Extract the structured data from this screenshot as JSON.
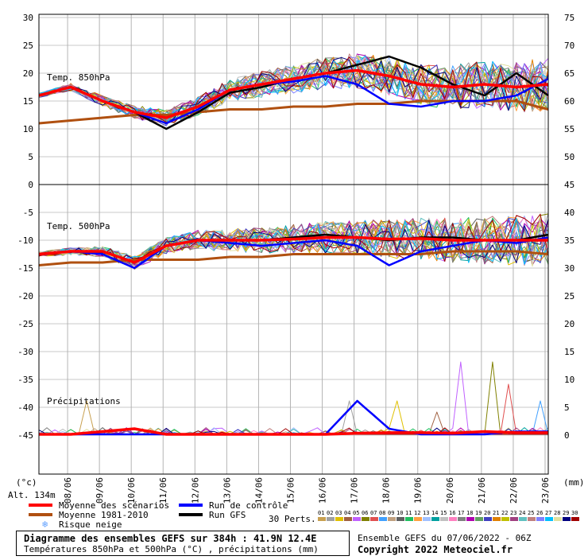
{
  "panels": {
    "top_label": "Temp. 850hPa",
    "mid_label": "Temp. 500hPa",
    "precip_label": "Précipitations"
  },
  "axes": {
    "left_unit": "(°c)",
    "right_unit": "(mm)",
    "altitude": "Alt. 134m",
    "left_top_ticks": [
      "30",
      "25",
      "20",
      "15",
      "10",
      "5",
      "0"
    ],
    "right_top_ticks": [
      "75",
      "70",
      "65",
      "60",
      "55",
      "50",
      "45"
    ],
    "left_bottom_ticks": [
      "-5",
      "-10",
      "-15",
      "-20",
      "-25",
      "-30",
      "-35",
      "-40",
      "-45"
    ],
    "right_bottom_ticks": [
      "40",
      "35",
      "30",
      "25",
      "20",
      "15",
      "10",
      "5",
      "0"
    ],
    "dates": [
      "08/06",
      "09/06",
      "10/06",
      "11/06",
      "12/06",
      "13/06",
      "14/06",
      "15/06",
      "16/06",
      "17/06",
      "18/06",
      "19/06",
      "20/06",
      "21/06",
      "22/06",
      "23/06"
    ]
  },
  "legend": {
    "mean": "Moyenne des scénarios",
    "climato": "Moyenne 1981-2010",
    "snow": "Risque neige",
    "control": "Run de contrôle",
    "gfs": "Run GFS",
    "perts": "30 Perts.",
    "pert_numbers": [
      "01",
      "02",
      "03",
      "04",
      "05",
      "06",
      "07",
      "08",
      "09",
      "10",
      "11",
      "12",
      "13",
      "14",
      "15",
      "16",
      "17",
      "18",
      "19",
      "20",
      "21",
      "22",
      "23",
      "24",
      "25",
      "26",
      "27",
      "28",
      "29",
      "30"
    ],
    "pert_colors": [
      "#c8a050",
      "#a0a0a0",
      "#e0c000",
      "#a06040",
      "#c060ff",
      "#808000",
      "#e05050",
      "#40a0ff",
      "#c0a080",
      "#606060",
      "#20c060",
      "#ffa040",
      "#a0c0ff",
      "#00a0a0",
      "#c0c0c0",
      "#ff80c0",
      "#808080",
      "#b000b0",
      "#60a060",
      "#4040c0",
      "#e08000",
      "#c0c000",
      "#a04080",
      "#60c0c0",
      "#c08080",
      "#8080ff",
      "#00c0ff",
      "#e0e0a0",
      "#000080",
      "#a00000"
    ],
    "colors": {
      "mean": "#ff0000",
      "climato": "#b05010",
      "control": "#0000ff",
      "gfs": "#000000",
      "snow": "#60a0ff"
    }
  },
  "footer": {
    "title": "Diagramme des ensembles GEFS sur 384h : 41.9N 12.4E",
    "subtitle": "Températures 850hPa et 500hPa (°C) , précipitations (mm)",
    "run": "Ensemble GEFS du 07/06/2022 - 06Z",
    "copyright": "Copyright 2022 Meteociel.fr"
  },
  "chart_data": [
    {
      "type": "line",
      "title": "Temp. 850hPa",
      "ylabel": "(°c)",
      "ylim": [
        0,
        30
      ],
      "x": [
        "07/06 06Z",
        "08/06",
        "09/06",
        "10/06",
        "11/06",
        "12/06",
        "13/06",
        "14/06",
        "15/06",
        "16/06",
        "17/06",
        "18/06",
        "19/06",
        "20/06",
        "21/06",
        "22/06",
        "23/06"
      ],
      "series": [
        {
          "name": "Moyenne des scénarios",
          "values": [
            16,
            17.5,
            15,
            13,
            12,
            14,
            17,
            18,
            19,
            20,
            20.5,
            19.5,
            18,
            17.5,
            18,
            17.5,
            18
          ]
        },
        {
          "name": "Moyenne 1981-2010",
          "values": [
            11,
            11.5,
            12,
            12.5,
            12.5,
            13,
            13.5,
            13.5,
            14,
            14,
            14.5,
            14.5,
            15,
            15,
            15,
            15,
            13.5
          ]
        },
        {
          "name": "Run de contrôle",
          "values": [
            16,
            17.5,
            15,
            13,
            11,
            13.5,
            17,
            18,
            18.5,
            19.5,
            18,
            14.5,
            14,
            15,
            15,
            16,
            19
          ]
        },
        {
          "name": "Run GFS",
          "values": [
            16,
            17.5,
            15,
            13,
            10,
            13,
            16.5,
            17.5,
            19,
            20,
            21.5,
            23,
            21,
            18,
            16,
            20,
            16
          ]
        }
      ]
    },
    {
      "type": "line",
      "title": "Temp. 500hPa",
      "ylim": [
        -20,
        -5
      ],
      "x": [
        "07/06 06Z",
        "08/06",
        "09/06",
        "10/06",
        "11/06",
        "12/06",
        "13/06",
        "14/06",
        "15/06",
        "16/06",
        "17/06",
        "18/06",
        "19/06",
        "20/06",
        "21/06",
        "22/06",
        "23/06"
      ],
      "series": [
        {
          "name": "Moyenne des scénarios",
          "values": [
            -12.5,
            -12,
            -12,
            -14,
            -11,
            -10,
            -10,
            -10,
            -9.8,
            -9.5,
            -9.5,
            -9.8,
            -9.7,
            -10,
            -10,
            -10,
            -10
          ]
        },
        {
          "name": "Moyenne 1981-2010",
          "values": [
            -14.5,
            -14,
            -14,
            -13.5,
            -13.5,
            -13.5,
            -13,
            -13,
            -12.5,
            -12.5,
            -12.5,
            -12.5,
            -12.5,
            -12,
            -12,
            -12,
            -12.5
          ]
        },
        {
          "name": "Run de contrôle",
          "values": [
            -12.5,
            -12,
            -12.5,
            -15,
            -11,
            -10,
            -10.5,
            -11,
            -10.5,
            -10,
            -11,
            -14.5,
            -12,
            -11,
            -10,
            -10.5,
            -9.5
          ]
        },
        {
          "name": "Run GFS",
          "values": [
            -12.5,
            -12,
            -12,
            -14,
            -11,
            -10,
            -10,
            -10,
            -9.5,
            -9,
            -9.5,
            -10,
            -9.5,
            -9.5,
            -10,
            -10,
            -9
          ]
        }
      ]
    },
    {
      "type": "line",
      "title": "Précipitations",
      "ylabel": "(mm)",
      "ylim": [
        0,
        40
      ],
      "x": [
        "07/06 06Z",
        "08/06",
        "09/06",
        "10/06",
        "11/06",
        "12/06",
        "13/06",
        "14/06",
        "15/06",
        "16/06",
        "17/06",
        "18/06",
        "19/06",
        "20/06",
        "21/06",
        "22/06",
        "23/06"
      ],
      "series": [
        {
          "name": "Moyenne des scénarios",
          "values": [
            0,
            0,
            0.5,
            1,
            0,
            0,
            0,
            0,
            0,
            0,
            0.2,
            0.3,
            0.3,
            0.2,
            0.5,
            0.3,
            0.3
          ]
        },
        {
          "name": "Run de contrôle",
          "values": [
            0,
            0,
            0,
            0,
            0,
            0,
            0,
            0,
            0,
            0,
            6,
            1,
            0,
            0,
            0,
            0.5,
            0.5
          ]
        }
      ]
    }
  ]
}
